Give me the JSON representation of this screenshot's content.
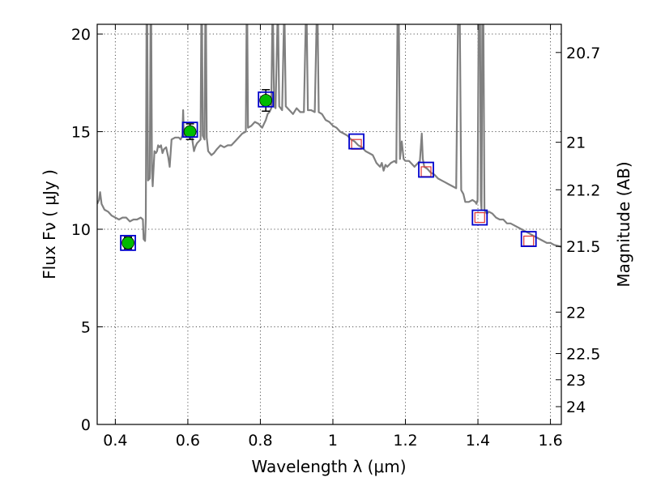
{
  "chart_data": {
    "type": "line",
    "xlabel": "Wavelength  λ (μm)",
    "ylabel": "Flux  Fν  ( μJy )",
    "ylabel_right": "Magnitude (AB)",
    "xlim": [
      0.35,
      1.63
    ],
    "ylim": [
      0,
      20.5
    ],
    "grid": true,
    "x_ticks": [
      {
        "value": 0.4,
        "label": "0.4"
      },
      {
        "value": 0.6,
        "label": "0.6"
      },
      {
        "value": 0.8,
        "label": "0.8"
      },
      {
        "value": 1.0,
        "label": "1"
      },
      {
        "value": 1.2,
        "label": "1.2"
      },
      {
        "value": 1.4,
        "label": "1.4"
      },
      {
        "value": 1.6,
        "label": "1.6"
      }
    ],
    "y_ticks": [
      {
        "value": 0,
        "label": "0"
      },
      {
        "value": 5,
        "label": "5"
      },
      {
        "value": 10,
        "label": "10"
      },
      {
        "value": 15,
        "label": "15"
      },
      {
        "value": 20,
        "label": "20"
      }
    ],
    "right_ticks": [
      {
        "value": 20.7,
        "label": "20.7"
      },
      {
        "value": 21,
        "label": "21"
      },
      {
        "value": 21.2,
        "label": "21.2"
      },
      {
        "value": 21.5,
        "label": "21.5"
      },
      {
        "value": 22,
        "label": "22"
      },
      {
        "value": 22.5,
        "label": "22.5"
      },
      {
        "value": 23,
        "label": "23"
      },
      {
        "value": 24,
        "label": "24"
      }
    ],
    "model_sed": {
      "color": "#808080",
      "points": [
        [
          0.35,
          11.3
        ],
        [
          0.355,
          11.5
        ],
        [
          0.358,
          11.9
        ],
        [
          0.362,
          11.3
        ],
        [
          0.37,
          11.0
        ],
        [
          0.38,
          10.9
        ],
        [
          0.39,
          10.7
        ],
        [
          0.4,
          10.6
        ],
        [
          0.41,
          10.5
        ],
        [
          0.42,
          10.6
        ],
        [
          0.43,
          10.6
        ],
        [
          0.44,
          10.4
        ],
        [
          0.45,
          10.5
        ],
        [
          0.46,
          10.5
        ],
        [
          0.47,
          10.6
        ],
        [
          0.476,
          10.5
        ],
        [
          0.478,
          9.5
        ],
        [
          0.482,
          9.4
        ],
        [
          0.484,
          10.5
        ],
        [
          0.486,
          20.5
        ],
        [
          0.488,
          20.5
        ],
        [
          0.49,
          12.5
        ],
        [
          0.495,
          12.6
        ],
        [
          0.497,
          20.5
        ],
        [
          0.499,
          20.5
        ],
        [
          0.501,
          13.0
        ],
        [
          0.503,
          12.2
        ],
        [
          0.508,
          14.0
        ],
        [
          0.512,
          13.9
        ],
        [
          0.515,
          14.0
        ],
        [
          0.518,
          14.3
        ],
        [
          0.522,
          14.2
        ],
        [
          0.526,
          14.3
        ],
        [
          0.53,
          13.9
        ],
        [
          0.534,
          14.1
        ],
        [
          0.54,
          14.2
        ],
        [
          0.546,
          13.7
        ],
        [
          0.55,
          13.2
        ],
        [
          0.555,
          14.6
        ],
        [
          0.565,
          14.7
        ],
        [
          0.575,
          14.7
        ],
        [
          0.58,
          14.6
        ],
        [
          0.585,
          14.8
        ],
        [
          0.587,
          16.1
        ],
        [
          0.589,
          14.8
        ],
        [
          0.595,
          15.0
        ],
        [
          0.6,
          15.1
        ],
        [
          0.605,
          15.1
        ],
        [
          0.61,
          15.2
        ],
        [
          0.613,
          14.5
        ],
        [
          0.617,
          14.0
        ],
        [
          0.62,
          14.2
        ],
        [
          0.625,
          14.4
        ],
        [
          0.63,
          14.5
        ],
        [
          0.635,
          14.6
        ],
        [
          0.637,
          20.5
        ],
        [
          0.639,
          20.5
        ],
        [
          0.641,
          14.8
        ],
        [
          0.646,
          14.6
        ],
        [
          0.648,
          20.5
        ],
        [
          0.65,
          20.5
        ],
        [
          0.652,
          14.7
        ],
        [
          0.656,
          14.0
        ],
        [
          0.665,
          13.8
        ],
        [
          0.672,
          13.9
        ],
        [
          0.68,
          14.1
        ],
        [
          0.69,
          14.3
        ],
        [
          0.7,
          14.2
        ],
        [
          0.71,
          14.3
        ],
        [
          0.72,
          14.3
        ],
        [
          0.73,
          14.5
        ],
        [
          0.74,
          14.7
        ],
        [
          0.75,
          14.9
        ],
        [
          0.76,
          15.0
        ],
        [
          0.762,
          20.5
        ],
        [
          0.764,
          20.5
        ],
        [
          0.766,
          15.2
        ],
        [
          0.775,
          15.3
        ],
        [
          0.785,
          15.5
        ],
        [
          0.795,
          15.4
        ],
        [
          0.8,
          15.3
        ],
        [
          0.805,
          15.2
        ],
        [
          0.81,
          15.4
        ],
        [
          0.815,
          15.6
        ],
        [
          0.82,
          15.9
        ],
        [
          0.825,
          16.0
        ],
        [
          0.83,
          16.2
        ],
        [
          0.833,
          20.5
        ],
        [
          0.835,
          20.5
        ],
        [
          0.838,
          16.3
        ],
        [
          0.842,
          16.2
        ],
        [
          0.847,
          20.5
        ],
        [
          0.849,
          20.5
        ],
        [
          0.852,
          16.3
        ],
        [
          0.86,
          16.1
        ],
        [
          0.865,
          20.5
        ],
        [
          0.867,
          20.5
        ],
        [
          0.87,
          16.3
        ],
        [
          0.88,
          16.1
        ],
        [
          0.89,
          15.9
        ],
        [
          0.9,
          16.2
        ],
        [
          0.91,
          16.0
        ],
        [
          0.92,
          16.0
        ],
        [
          0.925,
          20.5
        ],
        [
          0.928,
          20.5
        ],
        [
          0.931,
          16.1
        ],
        [
          0.94,
          16.1
        ],
        [
          0.95,
          16.0
        ],
        [
          0.955,
          20.5
        ],
        [
          0.958,
          20.5
        ],
        [
          0.961,
          16.0
        ],
        [
          0.97,
          15.9
        ],
        [
          0.98,
          15.6
        ],
        [
          0.99,
          15.5
        ],
        [
          1.0,
          15.3
        ],
        [
          1.01,
          15.2
        ],
        [
          1.02,
          15.0
        ],
        [
          1.03,
          14.9
        ],
        [
          1.04,
          14.8
        ],
        [
          1.05,
          14.6
        ],
        [
          1.06,
          14.5
        ],
        [
          1.07,
          14.3
        ],
        [
          1.08,
          14.2
        ],
        [
          1.09,
          14.0
        ],
        [
          1.1,
          13.9
        ],
        [
          1.11,
          13.8
        ],
        [
          1.115,
          13.6
        ],
        [
          1.12,
          13.4
        ],
        [
          1.125,
          13.3
        ],
        [
          1.13,
          13.2
        ],
        [
          1.135,
          13.4
        ],
        [
          1.14,
          13.0
        ],
        [
          1.145,
          13.3
        ],
        [
          1.15,
          13.2
        ],
        [
          1.16,
          13.4
        ],
        [
          1.17,
          13.5
        ],
        [
          1.175,
          13.4
        ],
        [
          1.178,
          20.5
        ],
        [
          1.182,
          20.5
        ],
        [
          1.185,
          13.6
        ],
        [
          1.19,
          14.5
        ],
        [
          1.195,
          13.6
        ],
        [
          1.2,
          13.5
        ],
        [
          1.21,
          13.5
        ],
        [
          1.22,
          13.3
        ],
        [
          1.225,
          13.2
        ],
        [
          1.23,
          13.3
        ],
        [
          1.24,
          13.5
        ],
        [
          1.245,
          14.9
        ],
        [
          1.248,
          13.6
        ],
        [
          1.252,
          13.2
        ],
        [
          1.26,
          13.1
        ],
        [
          1.27,
          12.9
        ],
        [
          1.28,
          12.8
        ],
        [
          1.29,
          12.6
        ],
        [
          1.3,
          12.5
        ],
        [
          1.31,
          12.4
        ],
        [
          1.32,
          12.3
        ],
        [
          1.33,
          12.2
        ],
        [
          1.34,
          12.1
        ],
        [
          1.345,
          20.5
        ],
        [
          1.35,
          20.5
        ],
        [
          1.354,
          12.0
        ],
        [
          1.36,
          11.8
        ],
        [
          1.365,
          11.4
        ],
        [
          1.375,
          11.4
        ],
        [
          1.385,
          11.5
        ],
        [
          1.393,
          11.4
        ],
        [
          1.396,
          11.3
        ],
        [
          1.399,
          11.5
        ],
        [
          1.402,
          20.5
        ],
        [
          1.406,
          20.5
        ],
        [
          1.408,
          11.5
        ],
        [
          1.41,
          11.0
        ],
        [
          1.412,
          20.5
        ],
        [
          1.415,
          20.5
        ],
        [
          1.418,
          11.0
        ],
        [
          1.42,
          10.9
        ],
        [
          1.425,
          10.8
        ],
        [
          1.43,
          10.9
        ],
        [
          1.44,
          10.8
        ],
        [
          1.45,
          10.6
        ],
        [
          1.46,
          10.5
        ],
        [
          1.47,
          10.5
        ],
        [
          1.48,
          10.3
        ],
        [
          1.49,
          10.3
        ],
        [
          1.5,
          10.2
        ],
        [
          1.51,
          10.1
        ],
        [
          1.52,
          10.0
        ],
        [
          1.53,
          9.9
        ],
        [
          1.54,
          9.8
        ],
        [
          1.55,
          9.7
        ],
        [
          1.56,
          9.6
        ],
        [
          1.57,
          9.5
        ],
        [
          1.58,
          9.4
        ],
        [
          1.59,
          9.3
        ],
        [
          1.6,
          9.3
        ],
        [
          1.61,
          9.2
        ],
        [
          1.63,
          9.1
        ]
      ]
    },
    "model_photometry": {
      "color": "#0000cc",
      "points": [
        [
          0.435,
          9.3
        ],
        [
          0.606,
          15.1
        ],
        [
          0.815,
          16.65
        ],
        [
          1.065,
          14.5
        ],
        [
          1.257,
          13.05
        ],
        [
          1.405,
          10.6
        ],
        [
          1.54,
          9.5
        ]
      ]
    },
    "observed_photometry": {
      "color": "#00bb00",
      "points": [
        {
          "x": 0.435,
          "y": 9.3,
          "yerr": 0.3
        },
        {
          "x": 0.606,
          "y": 15.0,
          "yerr": 0.4
        },
        {
          "x": 0.815,
          "y": 16.6,
          "yerr": 0.55
        }
      ]
    },
    "upper_limits": {
      "color": "#dd3333",
      "points": [
        [
          1.065,
          14.35
        ],
        [
          1.257,
          12.95
        ],
        [
          1.405,
          10.6
        ],
        [
          1.54,
          9.4
        ]
      ]
    }
  }
}
